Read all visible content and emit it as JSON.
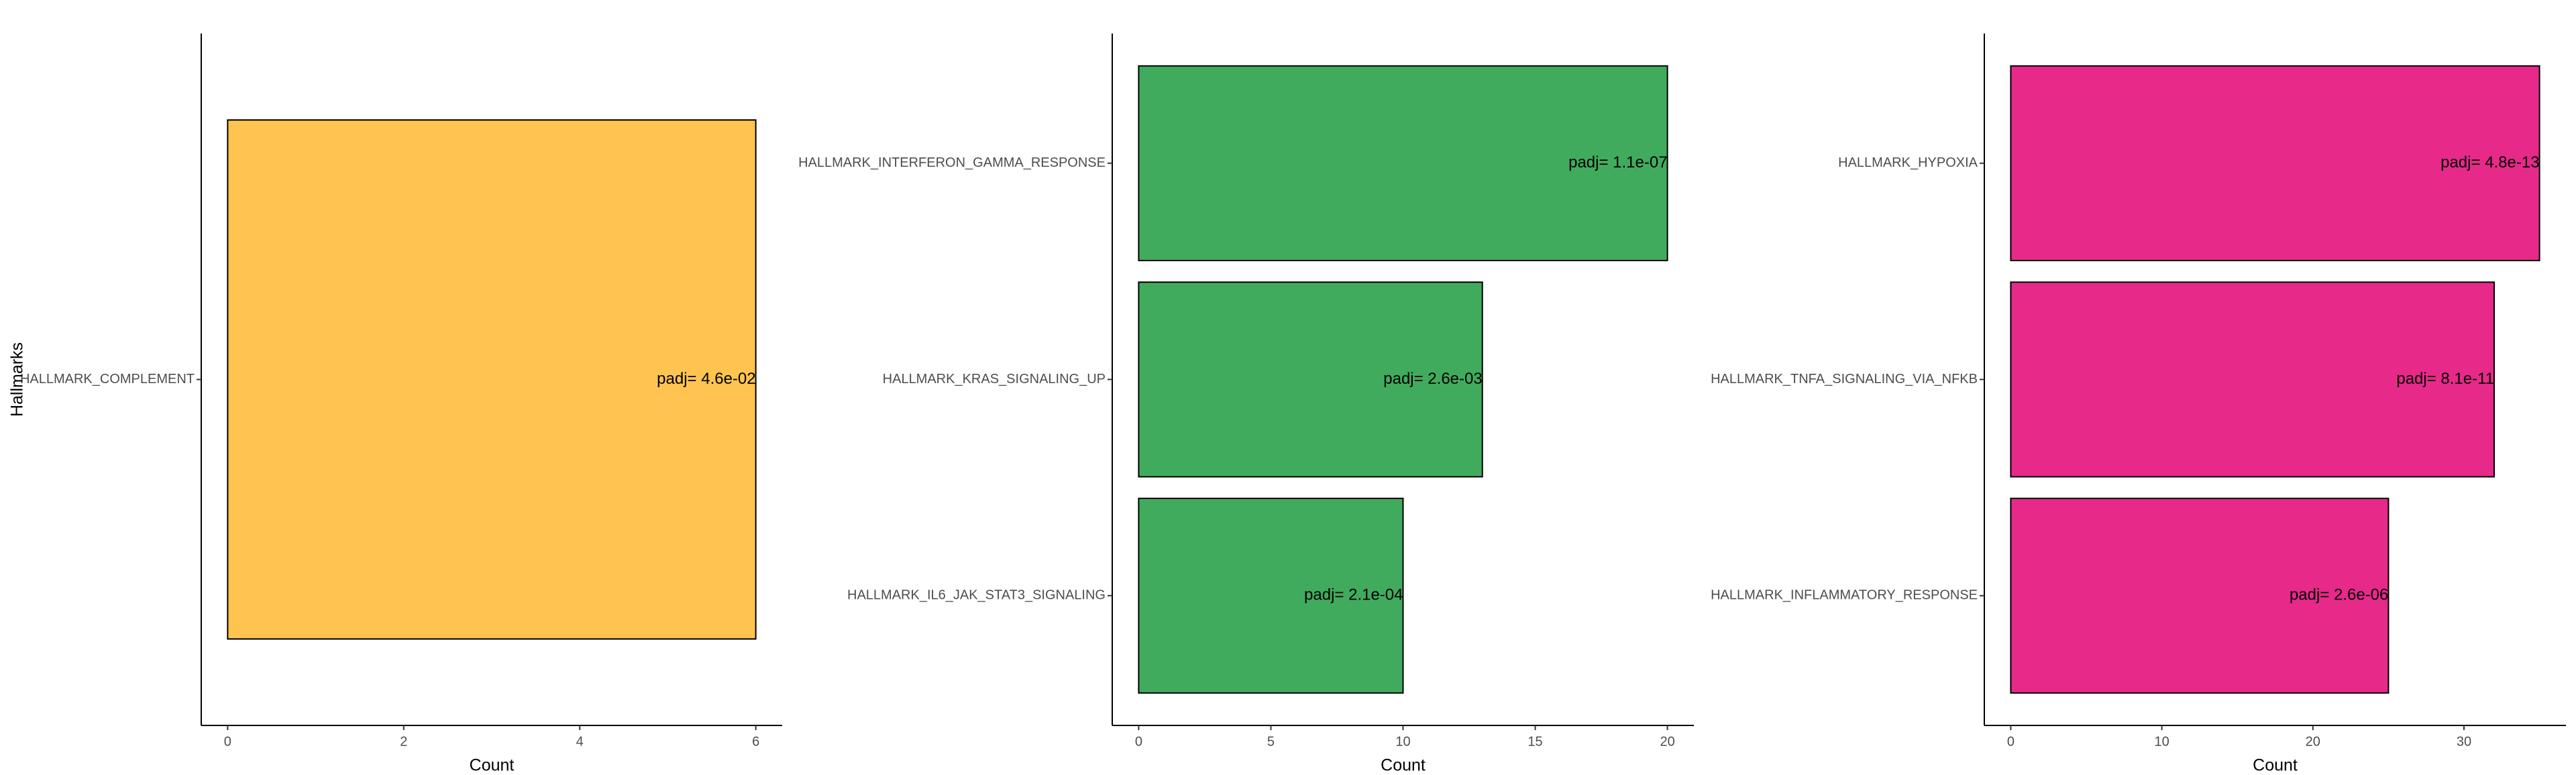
{
  "colors": {
    "panel1_bar": "#FEC44F",
    "panel2_bar": "#41AB5D",
    "panel3_bar": "#E7298A",
    "axis": "#000000",
    "text_dark": "#4D4D4D"
  },
  "chart_data": [
    {
      "type": "bar",
      "orientation": "horizontal",
      "categories": [
        "HALLMARK_COMPLEMENT"
      ],
      "values": [
        6
      ],
      "data_labels": [
        "padj= 4.6e-02"
      ],
      "xlabel": "Count",
      "ylabel": "Hallmarks",
      "xlim": [
        -0.3,
        6.3
      ],
      "xticks": [
        0,
        2,
        4,
        6
      ],
      "xtick_labels": [
        "0",
        "2",
        "4",
        "6"
      ],
      "grid": false,
      "legend": "none",
      "bar_color": "#FEC44F"
    },
    {
      "type": "bar",
      "orientation": "horizontal",
      "categories": [
        "HALLMARK_INTERFERON_GAMMA_RESPONSE",
        "HALLMARK_KRAS_SIGNALING_UP",
        "HALLMARK_IL6_JAK_STAT3_SIGNALING"
      ],
      "values": [
        20,
        13,
        10
      ],
      "data_labels": [
        "padj= 1.1e-07",
        "padj= 2.6e-03",
        "padj= 2.1e-04"
      ],
      "xlabel": "Count",
      "ylabel": "",
      "xlim": [
        -1,
        21
      ],
      "xticks": [
        0,
        5,
        10,
        15,
        20
      ],
      "xtick_labels": [
        "0",
        "5",
        "10",
        "15",
        "20"
      ],
      "grid": false,
      "legend": "none",
      "bar_color": "#41AB5D"
    },
    {
      "type": "bar",
      "orientation": "horizontal",
      "categories": [
        "HALLMARK_HYPOXIA",
        "HALLMARK_TNFA_SIGNALING_VIA_NFKB",
        "HALLMARK_INFLAMMATORY_RESPONSE"
      ],
      "values": [
        35,
        32,
        25
      ],
      "data_labels": [
        "padj= 4.8e-13",
        "padj= 8.1e-11",
        "padj= 2.6e-06"
      ],
      "xlabel": "Count",
      "ylabel": "",
      "xlim": [
        -1.75,
        36.75
      ],
      "xticks": [
        0,
        10,
        20,
        30
      ],
      "xtick_labels": [
        "0",
        "10",
        "20",
        "30"
      ],
      "grid": false,
      "legend": "none",
      "bar_color": "#E7298A"
    }
  ]
}
